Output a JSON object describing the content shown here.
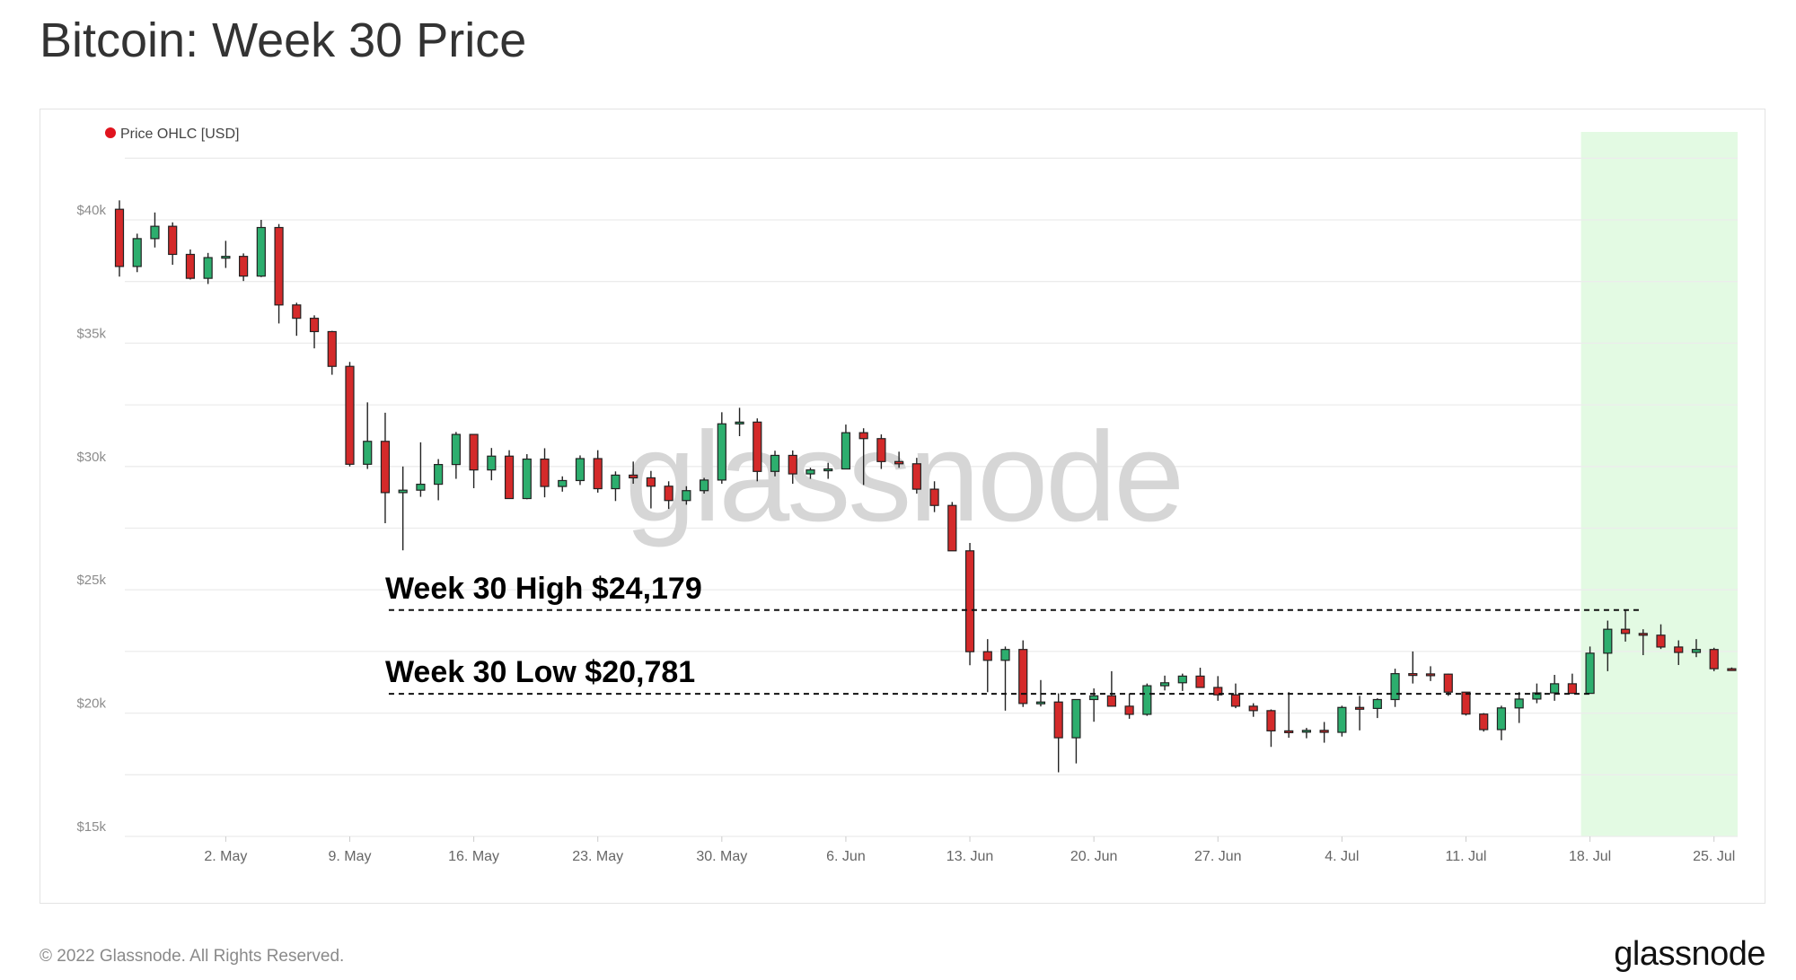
{
  "title": "Bitcoin: Week 30 Price",
  "footer": "© 2022 Glassnode. All Rights Reserved.",
  "logo": "glassnode",
  "watermark": "glassnode",
  "colors": {
    "up": "#2dae6e",
    "down": "#d42a2a",
    "legend_dot": "#e0141e",
    "highlight": "#e3fae3"
  },
  "chart_data": {
    "type": "candlestick",
    "title": "Bitcoin: Week 30 Price",
    "legend": [
      {
        "label": "Price OHLC [USD]",
        "position": "top-left"
      }
    ],
    "ylabel": "",
    "xlabel": "",
    "ylim": [
      15000,
      42500
    ],
    "y_ticks": [
      {
        "value": 15000,
        "label": "$15k"
      },
      {
        "value": 20000,
        "label": "$20k"
      },
      {
        "value": 25000,
        "label": "$25k"
      },
      {
        "value": 30000,
        "label": "$30k"
      },
      {
        "value": 35000,
        "label": "$35k"
      },
      {
        "value": 40000,
        "label": "$40k"
      }
    ],
    "grid_step": 2500,
    "x_ticks": [
      {
        "day": 6,
        "label": "2. May"
      },
      {
        "day": 13,
        "label": "9. May"
      },
      {
        "day": 20,
        "label": "16. May"
      },
      {
        "day": 27,
        "label": "23. May"
      },
      {
        "day": 34,
        "label": "30. May"
      },
      {
        "day": 41,
        "label": "6. Jun"
      },
      {
        "day": 48,
        "label": "13. Jun"
      },
      {
        "day": 55,
        "label": "20. Jun"
      },
      {
        "day": 62,
        "label": "27. Jun"
      },
      {
        "day": 69,
        "label": "4. Jul"
      },
      {
        "day": 76,
        "label": "11. Jul"
      },
      {
        "day": 83,
        "label": "18. Jul"
      },
      {
        "day": 90,
        "label": "25. Jul"
      }
    ],
    "start_date": "2022-04-26",
    "highlight_range_days": [
      83,
      90
    ],
    "ohlc": [
      [
        40430,
        40790,
        37700,
        38110
      ],
      [
        38110,
        39440,
        37880,
        39240
      ],
      [
        39240,
        40300,
        38880,
        39740
      ],
      [
        39740,
        39900,
        38180,
        38600
      ],
      [
        38600,
        38800,
        37580,
        37630
      ],
      [
        37630,
        38660,
        37400,
        38470
      ],
      [
        38470,
        39150,
        38050,
        38520
      ],
      [
        38520,
        38640,
        37520,
        37720
      ],
      [
        37720,
        40000,
        37680,
        39690
      ],
      [
        39690,
        39830,
        35800,
        36550
      ],
      [
        36550,
        36640,
        35300,
        36010
      ],
      [
        36010,
        36130,
        34790,
        35470
      ],
      [
        35470,
        35500,
        33720,
        34060
      ],
      [
        34060,
        34240,
        30000,
        30090
      ],
      [
        30090,
        32600,
        29900,
        31020
      ],
      [
        31020,
        32180,
        27700,
        28940
      ],
      [
        28940,
        30000,
        26600,
        29040
      ],
      [
        29040,
        30980,
        28770,
        29280
      ],
      [
        29280,
        30300,
        28630,
        30080
      ],
      [
        30080,
        31400,
        29500,
        31300
      ],
      [
        31300,
        31300,
        29120,
        29860
      ],
      [
        29860,
        30750,
        29440,
        30420
      ],
      [
        30420,
        30660,
        28690,
        28700
      ],
      [
        28700,
        30500,
        28670,
        30300
      ],
      [
        30300,
        30740,
        28750,
        29190
      ],
      [
        29190,
        29600,
        28980,
        29430
      ],
      [
        29430,
        30450,
        29250,
        30320
      ],
      [
        30320,
        30660,
        28940,
        29100
      ],
      [
        29100,
        29800,
        28600,
        29650
      ],
      [
        29650,
        30200,
        29300,
        29540
      ],
      [
        29540,
        29820,
        28300,
        29200
      ],
      [
        29200,
        29400,
        28280,
        28620
      ],
      [
        28620,
        29200,
        28450,
        29020
      ],
      [
        29020,
        29540,
        28900,
        29450
      ],
      [
        29450,
        32200,
        29300,
        31730
      ],
      [
        31730,
        32380,
        31230,
        31800
      ],
      [
        31800,
        31950,
        29400,
        29800
      ],
      [
        29800,
        30640,
        29600,
        30450
      ],
      [
        30450,
        30650,
        29300,
        29700
      ],
      [
        29700,
        29950,
        29500,
        29860
      ],
      [
        29860,
        30150,
        29500,
        29900
      ],
      [
        29900,
        31700,
        29900,
        31370
      ],
      [
        31370,
        31550,
        29250,
        31130
      ],
      [
        31130,
        31300,
        29900,
        30200
      ],
      [
        30200,
        30600,
        29950,
        30110
      ],
      [
        30110,
        30350,
        28900,
        29080
      ],
      [
        29080,
        29400,
        28150,
        28420
      ],
      [
        28420,
        28560,
        26600,
        26580
      ],
      [
        26580,
        26900,
        21940,
        22490
      ],
      [
        22490,
        23000,
        20850,
        22140
      ],
      [
        22140,
        22700,
        20100,
        22580
      ],
      [
        22580,
        22950,
        20250,
        20390
      ],
      [
        20390,
        21340,
        20270,
        20450
      ],
      [
        20450,
        20800,
        17600,
        19000
      ],
      [
        19000,
        20550,
        17960,
        20550
      ],
      [
        20550,
        21000,
        19650,
        20700
      ],
      [
        20700,
        21700,
        20350,
        20280
      ],
      [
        20280,
        20800,
        19770,
        19950
      ],
      [
        19950,
        21200,
        19890,
        21110
      ],
      [
        21110,
        21520,
        20920,
        21230
      ],
      [
        21230,
        21600,
        20900,
        21500
      ],
      [
        21500,
        21840,
        21040,
        21040
      ],
      [
        21040,
        21500,
        20500,
        20740
      ],
      [
        20740,
        21200,
        20200,
        20280
      ],
      [
        20280,
        20400,
        19850,
        20100
      ],
      [
        20100,
        20150,
        18630,
        19280
      ],
      [
        19280,
        20850,
        19000,
        19240
      ],
      [
        19240,
        19400,
        18980,
        19300
      ],
      [
        19300,
        19640,
        18800,
        19220
      ],
      [
        19220,
        20300,
        19050,
        20230
      ],
      [
        20230,
        20700,
        19300,
        20190
      ],
      [
        20190,
        20600,
        19800,
        20550
      ],
      [
        20550,
        21800,
        20250,
        21600
      ],
      [
        21600,
        22500,
        21200,
        21590
      ],
      [
        21590,
        21900,
        21300,
        21580
      ],
      [
        21580,
        21600,
        20700,
        20850
      ],
      [
        20850,
        20850,
        19900,
        19960
      ],
      [
        19960,
        20000,
        19250,
        19330
      ],
      [
        19330,
        20300,
        18900,
        20210
      ],
      [
        20210,
        20850,
        19600,
        20570
      ],
      [
        20570,
        21200,
        20400,
        20820
      ],
      [
        20820,
        21550,
        20500,
        21190
      ],
      [
        21190,
        21600,
        20800,
        20800
      ],
      [
        20800,
        22700,
        20800,
        22430
      ],
      [
        22430,
        23750,
        21700,
        23400
      ],
      [
        23400,
        24180,
        22900,
        23230
      ],
      [
        23230,
        23400,
        22350,
        23160
      ],
      [
        23160,
        23600,
        22600,
        22680
      ],
      [
        22680,
        22950,
        21950,
        22460
      ],
      [
        22460,
        23000,
        22270,
        22580
      ],
      [
        22580,
        22650,
        21700,
        21800
      ],
      [
        21800,
        21850,
        21750,
        21780
      ]
    ],
    "annotations": [
      {
        "label": "Week 30 High  $24,179",
        "value": 24179,
        "from_day": 15,
        "to_day": 86
      },
      {
        "label": "Week 30 Low  $20,781",
        "value": 20781,
        "from_day": 15,
        "to_day": 83
      }
    ]
  }
}
